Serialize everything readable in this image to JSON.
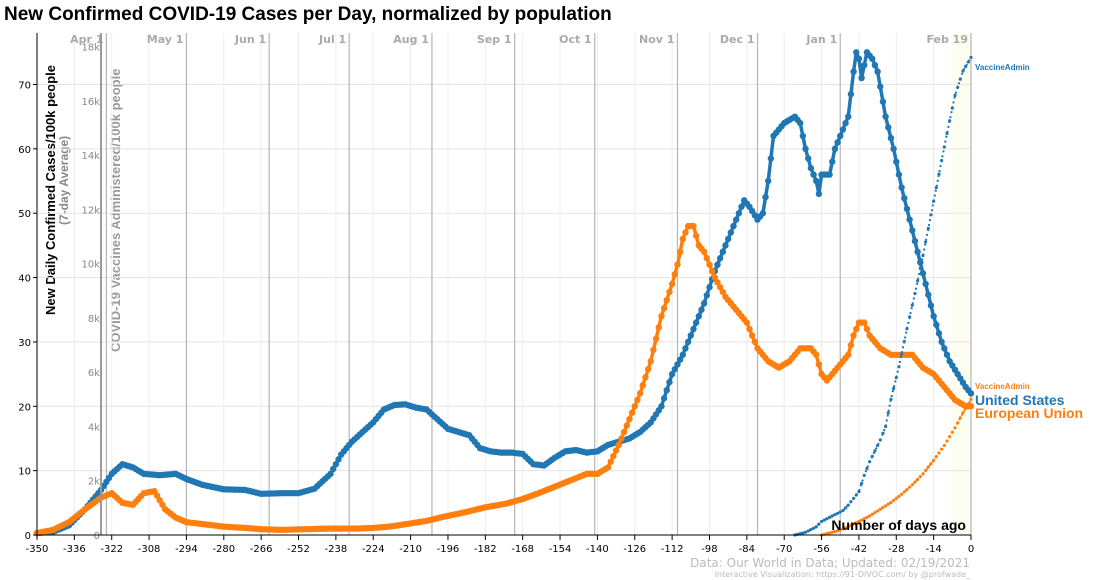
{
  "chart_data": {
    "type": "line",
    "title": "New Confirmed COVID-19 Cases per Day, normalized by population",
    "ylabel": "New Daily Confirmed Cases/100k people",
    "ylabel_sub": "(7-day Average)",
    "y2label": "COVID-19 Vaccines Administered/100k people",
    "xlabel": "Number of days ago",
    "xlim": [
      -350,
      0
    ],
    "ylim": [
      0,
      78
    ],
    "y2lim": [
      0,
      18500
    ],
    "xticks": [
      -350,
      -336,
      -322,
      -308,
      -294,
      -280,
      -266,
      -252,
      -238,
      -224,
      -210,
      -196,
      -182,
      -168,
      -154,
      -140,
      -126,
      -112,
      -98,
      -84,
      -70,
      -56,
      -42,
      -28,
      -14,
      0
    ],
    "xtick_labels": [
      "-350",
      "-336",
      "-322",
      "-308",
      "-294",
      "-280",
      "-266",
      "-252",
      "-238",
      "-224",
      "-210",
      "-196",
      "-182",
      "-168",
      "-154",
      "-140",
      "-126",
      "-112",
      "-98",
      "-84",
      "-70",
      "-56",
      "-42",
      "-28",
      "-14",
      "0"
    ],
    "yticks": [
      0,
      10,
      20,
      30,
      40,
      50,
      60,
      70
    ],
    "ytick_labels": [
      "0",
      "10",
      "20",
      "30",
      "40",
      "50",
      "60",
      "70"
    ],
    "y2ticks": [
      0,
      2000,
      4000,
      6000,
      8000,
      10000,
      12000,
      14000,
      16000,
      18000
    ],
    "y2tick_labels": [
      "0",
      "2k",
      "4k",
      "6k",
      "8k",
      "10k",
      "12k",
      "14k",
      "16k",
      "18k"
    ],
    "months": [
      {
        "label": "Apr 1",
        "day": -324
      },
      {
        "label": "May 1",
        "day": -294
      },
      {
        "label": "Jun 1",
        "day": -263
      },
      {
        "label": "Jul 1",
        "day": -233
      },
      {
        "label": "Aug 1",
        "day": -202
      },
      {
        "label": "Sep 1",
        "day": -171
      },
      {
        "label": "Oct 1",
        "day": -141
      },
      {
        "label": "Nov 1",
        "day": -110
      },
      {
        "label": "Dec 1",
        "day": -80
      },
      {
        "label": "Jan 1",
        "day": -49
      },
      {
        "label": "Feb 19",
        "day": 0
      }
    ],
    "grid": true,
    "series": [
      {
        "name": "United States",
        "color": "#1f77b4",
        "points": [
          [
            -350,
            0.3
          ],
          [
            -344,
            0.5
          ],
          [
            -338,
            1.5
          ],
          [
            -332,
            4
          ],
          [
            -326,
            7
          ],
          [
            -322,
            9.5
          ],
          [
            -318,
            11
          ],
          [
            -314,
            10.5
          ],
          [
            -310,
            9.5
          ],
          [
            -304,
            9.3
          ],
          [
            -298,
            9.5
          ],
          [
            -294,
            8.7
          ],
          [
            -288,
            7.8
          ],
          [
            -280,
            7.1
          ],
          [
            -272,
            7
          ],
          [
            -266,
            6.4
          ],
          [
            -258,
            6.5
          ],
          [
            -252,
            6.5
          ],
          [
            -246,
            7.2
          ],
          [
            -240,
            9.5
          ],
          [
            -236,
            12.5
          ],
          [
            -232,
            14.5
          ],
          [
            -228,
            16
          ],
          [
            -224,
            17.5
          ],
          [
            -220,
            19.5
          ],
          [
            -216,
            20.2
          ],
          [
            -212,
            20.3
          ],
          [
            -208,
            19.8
          ],
          [
            -204,
            19.5
          ],
          [
            -200,
            18
          ],
          [
            -196,
            16.5
          ],
          [
            -192,
            16
          ],
          [
            -188,
            15.5
          ],
          [
            -184,
            13.5
          ],
          [
            -180,
            13
          ],
          [
            -176,
            12.8
          ],
          [
            -172,
            12.8
          ],
          [
            -168,
            12.6
          ],
          [
            -164,
            11
          ],
          [
            -160,
            10.8
          ],
          [
            -156,
            12
          ],
          [
            -152,
            13
          ],
          [
            -148,
            13.2
          ],
          [
            -144,
            12.8
          ],
          [
            -140,
            13
          ],
          [
            -136,
            14
          ],
          [
            -132,
            14.5
          ],
          [
            -128,
            15
          ],
          [
            -124,
            16
          ],
          [
            -120,
            17.5
          ],
          [
            -116,
            20
          ],
          [
            -112,
            25
          ],
          [
            -108,
            28
          ],
          [
            -104,
            32
          ],
          [
            -100,
            36
          ],
          [
            -96,
            41
          ],
          [
            -92,
            45
          ],
          [
            -88,
            49
          ],
          [
            -85,
            52
          ],
          [
            -83,
            51
          ],
          [
            -80,
            49
          ],
          [
            -78,
            50
          ],
          [
            -76,
            55
          ],
          [
            -74,
            62
          ],
          [
            -70,
            64
          ],
          [
            -66,
            65
          ],
          [
            -64,
            64
          ],
          [
            -62,
            60
          ],
          [
            -60,
            57
          ],
          [
            -58,
            55
          ],
          [
            -57,
            53
          ],
          [
            -56,
            56
          ],
          [
            -53,
            56
          ],
          [
            -51,
            60
          ],
          [
            -48,
            63
          ],
          [
            -46,
            65
          ],
          [
            -44,
            72
          ],
          [
            -43,
            75
          ],
          [
            -42,
            74
          ],
          [
            -41,
            71
          ],
          [
            -40,
            73
          ],
          [
            -39,
            75
          ],
          [
            -37,
            74
          ],
          [
            -35,
            72
          ],
          [
            -32,
            65
          ],
          [
            -29,
            60
          ],
          [
            -26,
            54
          ],
          [
            -23,
            49
          ],
          [
            -20,
            44
          ],
          [
            -17,
            39
          ],
          [
            -14,
            34
          ],
          [
            -11,
            30
          ],
          [
            -8,
            27
          ],
          [
            -5,
            25
          ],
          [
            -2,
            23
          ],
          [
            0,
            22
          ]
        ]
      },
      {
        "name": "European Union",
        "color": "#ff7f0e",
        "points": [
          [
            -350,
            0.3
          ],
          [
            -344,
            0.8
          ],
          [
            -338,
            2
          ],
          [
            -332,
            4
          ],
          [
            -326,
            5.8
          ],
          [
            -322,
            6.5
          ],
          [
            -318,
            5
          ],
          [
            -314,
            4.7
          ],
          [
            -310,
            6.5
          ],
          [
            -306,
            6.8
          ],
          [
            -302,
            4
          ],
          [
            -298,
            2.7
          ],
          [
            -294,
            2
          ],
          [
            -288,
            1.7
          ],
          [
            -280,
            1.3
          ],
          [
            -272,
            1.1
          ],
          [
            -266,
            0.9
          ],
          [
            -258,
            0.8
          ],
          [
            -250,
            0.9
          ],
          [
            -240,
            1
          ],
          [
            -230,
            1
          ],
          [
            -224,
            1.1
          ],
          [
            -218,
            1.3
          ],
          [
            -210,
            1.8
          ],
          [
            -204,
            2.2
          ],
          [
            -198,
            2.8
          ],
          [
            -190,
            3.5
          ],
          [
            -182,
            4.3
          ],
          [
            -174,
            4.9
          ],
          [
            -168,
            5.6
          ],
          [
            -162,
            6.5
          ],
          [
            -156,
            7.5
          ],
          [
            -150,
            8.5
          ],
          [
            -144,
            9.5
          ],
          [
            -140,
            9.5
          ],
          [
            -136,
            10.5
          ],
          [
            -132,
            14
          ],
          [
            -128,
            18
          ],
          [
            -124,
            22
          ],
          [
            -120,
            27
          ],
          [
            -116,
            34
          ],
          [
            -112,
            39
          ],
          [
            -110,
            42
          ],
          [
            -108,
            46
          ],
          [
            -106,
            48
          ],
          [
            -104,
            48
          ],
          [
            -102,
            45
          ],
          [
            -100,
            44
          ],
          [
            -98,
            42
          ],
          [
            -96,
            40
          ],
          [
            -92,
            37
          ],
          [
            -88,
            35
          ],
          [
            -84,
            33
          ],
          [
            -80,
            29
          ],
          [
            -76,
            27
          ],
          [
            -72,
            26
          ],
          [
            -68,
            27
          ],
          [
            -64,
            29
          ],
          [
            -60,
            29
          ],
          [
            -58,
            28
          ],
          [
            -56,
            25
          ],
          [
            -54,
            24
          ],
          [
            -50,
            26
          ],
          [
            -46,
            28
          ],
          [
            -44,
            31
          ],
          [
            -42,
            33
          ],
          [
            -40,
            33
          ],
          [
            -38,
            31
          ],
          [
            -34,
            29
          ],
          [
            -30,
            28
          ],
          [
            -26,
            28
          ],
          [
            -22,
            28
          ],
          [
            -18,
            26
          ],
          [
            -14,
            25
          ],
          [
            -10,
            23
          ],
          [
            -6,
            21
          ],
          [
            -2,
            20
          ],
          [
            0,
            20
          ]
        ]
      },
      {
        "name": "VaccineAdmin",
        "color": "#1f77b4",
        "axis": "y2",
        "points": [
          [
            -66,
            0
          ],
          [
            -62,
            100
          ],
          [
            -58,
            300
          ],
          [
            -56,
            500
          ],
          [
            -52,
            700
          ],
          [
            -48,
            900
          ],
          [
            -46,
            1100
          ],
          [
            -42,
            1600
          ],
          [
            -40,
            2200
          ],
          [
            -38,
            2700
          ],
          [
            -34,
            3500
          ],
          [
            -32,
            4000
          ],
          [
            -30,
            5000
          ],
          [
            -27,
            6200
          ],
          [
            -24,
            7600
          ],
          [
            -21,
            8900
          ],
          [
            -18,
            10300
          ],
          [
            -15,
            11800
          ],
          [
            -12,
            13300
          ],
          [
            -9,
            14800
          ],
          [
            -6,
            16200
          ],
          [
            -3,
            17100
          ],
          [
            0,
            17600
          ]
        ]
      },
      {
        "name": "VaccineAdmin",
        "color": "#ff7f0e",
        "axis": "y2",
        "points": [
          [
            -56,
            0
          ],
          [
            -50,
            150
          ],
          [
            -46,
            300
          ],
          [
            -42,
            500
          ],
          [
            -38,
            700
          ],
          [
            -34,
            950
          ],
          [
            -30,
            1200
          ],
          [
            -26,
            1500
          ],
          [
            -22,
            1850
          ],
          [
            -18,
            2250
          ],
          [
            -14,
            2750
          ],
          [
            -10,
            3300
          ],
          [
            -6,
            3950
          ],
          [
            -3,
            4500
          ],
          [
            0,
            5000
          ]
        ]
      }
    ],
    "end_labels": {
      "us_vaccine": "VaccineAdmin",
      "eu_vaccine": "VaccineAdmin",
      "us": "United States",
      "eu": "European Union"
    },
    "footer": [
      "Data: Our World in Data; Updated: 02/19/2021",
      "Interactive Visualization: https://91-DIVOC.com/ by @profwade_"
    ]
  }
}
